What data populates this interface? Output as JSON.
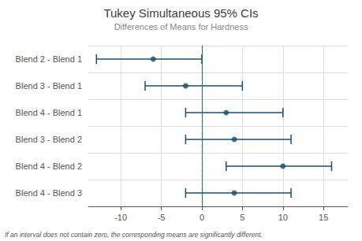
{
  "chart_data": {
    "type": "errorbar",
    "title": "Tukey Simultaneous 95% CIs",
    "subtitle": "Differences of Means for Hardness",
    "annotation": "If an interval does not contain zero, the corresponding means are significantly different.",
    "orientation": "horizontal",
    "categories": [
      "Blend 2 - Blend 1",
      "Blend 3 - Blend 1",
      "Blend 4 - Blend 1",
      "Blend 3 - Blend 2",
      "Blend 4 - Blend 2",
      "Blend 4 - Blend 3"
    ],
    "values": [
      -6,
      -2,
      3,
      4,
      10,
      4
    ],
    "ci_low": [
      -13,
      -7,
      -2,
      -2,
      3,
      -2
    ],
    "ci_high": [
      0,
      5,
      10,
      11,
      16,
      11
    ],
    "color": "#1c4e6e",
    "xlim": [
      -14,
      18
    ],
    "xticks": [
      -10,
      -5,
      0,
      5,
      10,
      15
    ],
    "grid": true,
    "reference_line": {
      "value": 0,
      "color": "#3a7d6a",
      "line_style": "dashed"
    }
  }
}
